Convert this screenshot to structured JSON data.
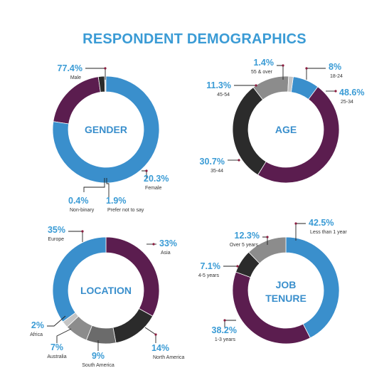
{
  "title": "RESPONDENT DEMOGRAPHICS",
  "colors": {
    "title": "#3a9bd5",
    "label_value": "#3a9bd5",
    "label_text": "#333333",
    "blue": "#3a8fcc",
    "purple": "#5b1d4f",
    "black": "#2b2b2b",
    "gray": "#8c8c8c",
    "darkgray": "#6b6b6b",
    "lightgray": "#c4c4c4",
    "center_text": "#3a8fcc",
    "leader": "#222222",
    "dot": "#8b1a3e"
  },
  "chart_data": [
    {
      "type": "pie",
      "title": "GENDER",
      "slices": [
        {
          "label": "Male",
          "value": 77.4,
          "display": "77.4%",
          "color": "blue"
        },
        {
          "label": "Female",
          "value": 20.3,
          "display": "20.3%",
          "color": "purple"
        },
        {
          "label": "Prefer not to say",
          "value": 1.9,
          "display": "1.9%",
          "color": "black"
        },
        {
          "label": "Non-binary",
          "value": 0.4,
          "display": "0.4%",
          "color": "lightgray"
        }
      ]
    },
    {
      "type": "pie",
      "title": "AGE",
      "slices": [
        {
          "label": "18-24",
          "value": 8,
          "display": "8%",
          "color": "blue"
        },
        {
          "label": "25-34",
          "value": 48.6,
          "display": "48.6%",
          "color": "purple"
        },
        {
          "label": "35-44",
          "value": 30.7,
          "display": "30.7%",
          "color": "black"
        },
        {
          "label": "45-54",
          "value": 11.3,
          "display": "11.3%",
          "color": "gray"
        },
        {
          "label": "55 & over",
          "value": 1.4,
          "display": "1.4%",
          "color": "lightgray"
        }
      ]
    },
    {
      "type": "pie",
      "title": "LOCATION",
      "slices": [
        {
          "label": "Asia",
          "value": 33,
          "display": "33%",
          "color": "purple"
        },
        {
          "label": "North America",
          "value": 14,
          "display": "14%",
          "color": "black"
        },
        {
          "label": "South America",
          "value": 9,
          "display": "9%",
          "color": "darkgray"
        },
        {
          "label": "Australia",
          "value": 7,
          "display": "7%",
          "color": "gray"
        },
        {
          "label": "Africa",
          "value": 2,
          "display": "2%",
          "color": "lightgray"
        },
        {
          "label": "Europe",
          "value": 35,
          "display": "35%",
          "color": "blue"
        }
      ]
    },
    {
      "type": "pie",
      "title": "JOB TENURE",
      "slices": [
        {
          "label": "Less than 1 year",
          "value": 42.5,
          "display": "42.5%",
          "color": "blue"
        },
        {
          "label": "1-3 years",
          "value": 38.2,
          "display": "38.2%",
          "color": "purple"
        },
        {
          "label": "4-5 years",
          "value": 7.1,
          "display": "7.1%",
          "color": "black"
        },
        {
          "label": "Over 5 years",
          "value": 12.3,
          "display": "12.3%",
          "color": "gray"
        }
      ]
    }
  ]
}
